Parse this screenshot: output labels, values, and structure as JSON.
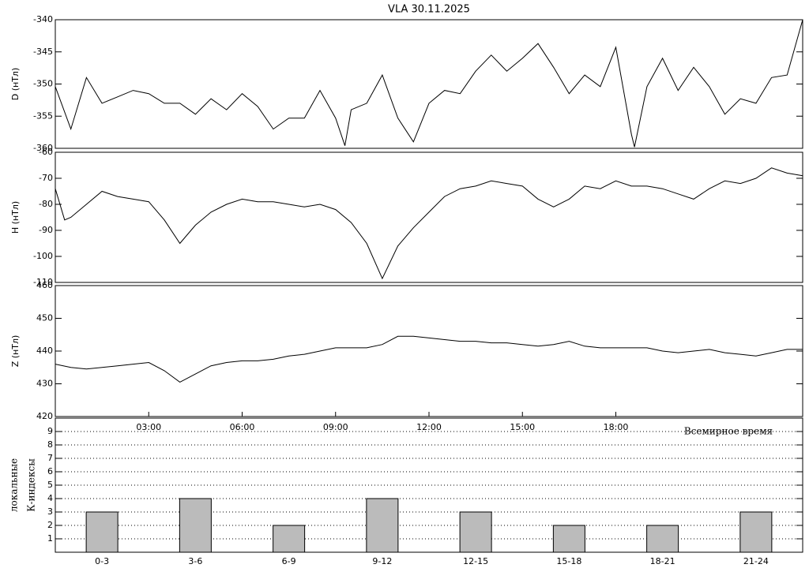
{
  "chart_data": [
    {
      "type": "line",
      "title": "VLA  30.11.2025",
      "y_label": "D (нТл)",
      "color": "#000000",
      "xlim": [
        0,
        24
      ],
      "ylim": [
        -360,
        -340
      ],
      "yticks": [
        -340,
        -345,
        -350,
        -355,
        -360
      ],
      "x": [
        0,
        0.5,
        1,
        1.5,
        2,
        2.5,
        3,
        3.5,
        4,
        4.5,
        5,
        5.5,
        6,
        6.5,
        7,
        7.5,
        8,
        8.5,
        9,
        9.3,
        9.5,
        10,
        10.5,
        11,
        11.5,
        12,
        12.5,
        13,
        13.5,
        14,
        14.5,
        15,
        15.5,
        16,
        16.5,
        17,
        17.5,
        18,
        18.5,
        18.6,
        19,
        19.5,
        20,
        20.5,
        21,
        21.5,
        22,
        22.5,
        23,
        23.5,
        24
      ],
      "values": [
        -350.4,
        -357,
        -349,
        -353,
        -352,
        -351,
        -351.5,
        -353,
        -353,
        -354.7,
        -352.3,
        -354,
        -351.5,
        -353.5,
        -357,
        -355.3,
        -355.3,
        -351,
        -355.3,
        -359.6,
        -354,
        -353,
        -348.6,
        -355.3,
        -359,
        -353,
        -351,
        -351.5,
        -348,
        -345.5,
        -348,
        -346,
        -343.7,
        -347.4,
        -351.5,
        -348.6,
        -350.4,
        -344.3,
        -357.8,
        -359.8,
        -350.4,
        -346,
        -351,
        -347.4,
        -350.4,
        -354.7,
        -352.3,
        -353,
        -349,
        -348.6,
        -340
      ]
    },
    {
      "type": "line",
      "y_label": "H (нТл)",
      "color": "#000000",
      "xlim": [
        0,
        24
      ],
      "ylim": [
        -110,
        -60
      ],
      "yticks": [
        -60,
        -70,
        -80,
        -90,
        -100,
        -110
      ],
      "x": [
        0,
        0.3,
        0.5,
        1,
        1.5,
        2,
        2.5,
        3,
        3.5,
        4,
        4.5,
        5,
        5.5,
        6,
        6.5,
        7,
        7.5,
        8,
        8.5,
        9,
        9.5,
        10,
        10.5,
        11,
        11.5,
        12,
        12.5,
        13,
        13.5,
        14,
        14.5,
        15,
        15.5,
        16,
        16.5,
        17,
        17.5,
        18,
        18.5,
        19,
        19.5,
        20,
        20.5,
        21,
        21.5,
        22,
        22.5,
        23,
        23.5,
        24
      ],
      "values": [
        -74,
        -86,
        -85,
        -80,
        -75,
        -77,
        -78,
        -79,
        -86,
        -95,
        -88,
        -83,
        -80,
        -78,
        -79,
        -79,
        -80,
        -81,
        -80,
        -82,
        -87,
        -95,
        -108.5,
        -96,
        -89,
        -83,
        -77,
        -74,
        -73,
        -71,
        -72,
        -73,
        -78,
        -81,
        -78,
        -73,
        -74,
        -71,
        -73,
        -73,
        -74,
        -76,
        -78,
        -74,
        -71,
        -72,
        -70,
        -66,
        -68,
        -69
      ]
    },
    {
      "type": "line",
      "y_label": "Z (нТл)",
      "x_label": "Всемирное время",
      "color": "#000000",
      "xlim": [
        0,
        24
      ],
      "ylim": [
        420,
        460
      ],
      "yticks": [
        420,
        430,
        440,
        450,
        460
      ],
      "xticks": [
        {
          "value": 3,
          "label": "03:00"
        },
        {
          "value": 6,
          "label": "06:00"
        },
        {
          "value": 9,
          "label": "09:00"
        },
        {
          "value": 12,
          "label": "12:00"
        },
        {
          "value": 15,
          "label": "15:00"
        },
        {
          "value": 18,
          "label": "18:00"
        }
      ],
      "x": [
        0,
        0.5,
        1,
        1.5,
        2,
        2.5,
        3,
        3.5,
        4,
        4.5,
        5,
        5.5,
        6,
        6.5,
        7,
        7.5,
        8,
        8.5,
        9,
        9.5,
        10,
        10.5,
        11,
        11.5,
        12,
        12.5,
        13,
        13.5,
        14,
        14.5,
        15,
        15.5,
        16,
        16.5,
        17,
        17.5,
        18,
        18.5,
        19,
        19.5,
        20,
        20.5,
        21,
        21.5,
        22,
        22.5,
        23,
        23.5,
        24
      ],
      "values": [
        436,
        435,
        434.5,
        435,
        435.5,
        436,
        436.5,
        434,
        430.5,
        433,
        435.5,
        436.5,
        437,
        437,
        437.5,
        438.5,
        439,
        440,
        441,
        441,
        441,
        442,
        444.5,
        444.5,
        444,
        443.5,
        443,
        443,
        442.5,
        442.5,
        442,
        441.5,
        442,
        443,
        441.5,
        441,
        441,
        441,
        441,
        440,
        439.5,
        440,
        440.5,
        439.5,
        439,
        438.5,
        439.5,
        440.5,
        440.5
      ]
    },
    {
      "type": "bar",
      "y_label": [
        "локальные",
        "К-индексы"
      ],
      "color": "#bbbbbb",
      "grid": true,
      "categories": [
        "0-3",
        "3-6",
        "6-9",
        "9-12",
        "12-15",
        "15-18",
        "18-21",
        "21-24"
      ],
      "values": [
        3,
        4,
        2,
        4,
        3,
        2,
        2,
        3
      ],
      "ylim": [
        0,
        10
      ],
      "yticks": [
        1,
        2,
        3,
        4,
        5,
        6,
        7,
        8,
        9
      ]
    }
  ]
}
